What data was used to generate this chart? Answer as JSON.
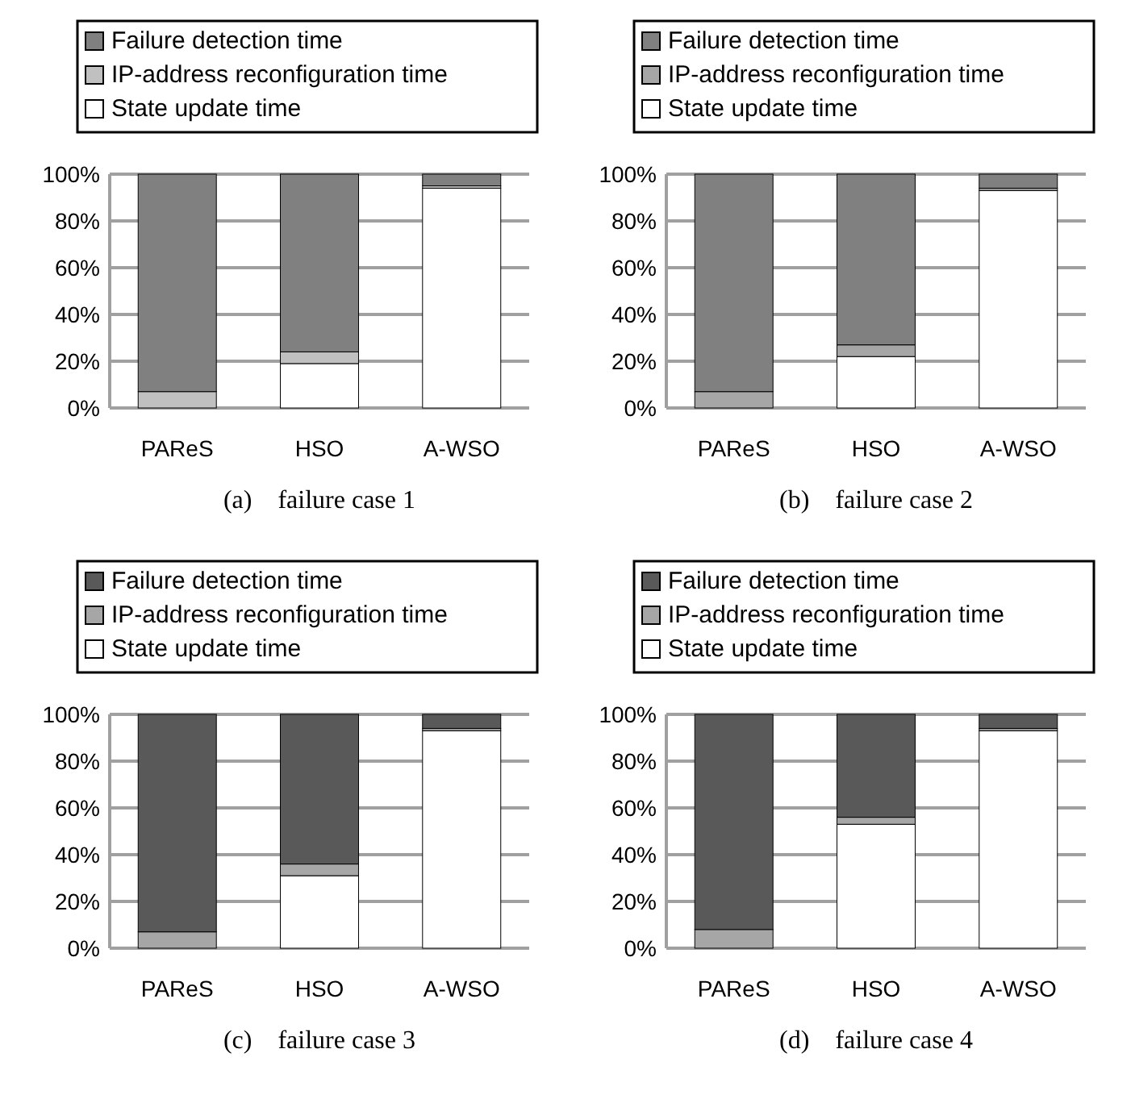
{
  "chart_data": [
    {
      "type": "bar",
      "stacked": true,
      "categories": [
        "PAReS",
        "HSO",
        "A-WSO"
      ],
      "ylim": [
        0,
        100
      ],
      "yticks": [
        {
          "value": 0,
          "label": "0%"
        },
        {
          "value": 20,
          "label": "20%"
        },
        {
          "value": 40,
          "label": "40%"
        },
        {
          "value": 60,
          "label": "60%"
        },
        {
          "value": 80,
          "label": "80%"
        },
        {
          "value": 100,
          "label": "100%"
        }
      ],
      "grid": "y",
      "legend": "top",
      "annotations": [
        "(a)    failure case 1"
      ],
      "series": [
        {
          "name": "State update time",
          "color": "#ffffff",
          "values": [
            0,
            19,
            94
          ]
        },
        {
          "name": "IP-address reconfiguration time",
          "color": "#c0c0c0",
          "values": [
            7,
            5,
            1
          ]
        },
        {
          "name": "Failure detection time",
          "color": "#808080",
          "values": [
            93,
            76,
            5
          ]
        }
      ]
    },
    {
      "type": "bar",
      "stacked": true,
      "categories": [
        "PAReS",
        "HSO",
        "A-WSO"
      ],
      "ylim": [
        0,
        100
      ],
      "yticks": [
        {
          "value": 0,
          "label": "0%"
        },
        {
          "value": 20,
          "label": "20%"
        },
        {
          "value": 40,
          "label": "40%"
        },
        {
          "value": 60,
          "label": "60%"
        },
        {
          "value": 80,
          "label": "80%"
        },
        {
          "value": 100,
          "label": "100%"
        }
      ],
      "grid": "y",
      "legend": "top",
      "annotations": [
        "(b)    failure case 2"
      ],
      "series": [
        {
          "name": "State update time",
          "color": "#ffffff",
          "values": [
            0,
            22,
            93
          ]
        },
        {
          "name": "IP-address reconfiguration time",
          "color": "#a6a6a6",
          "values": [
            7,
            5,
            1
          ]
        },
        {
          "name": "Failure detection time",
          "color": "#808080",
          "values": [
            93,
            73,
            6
          ]
        }
      ]
    },
    {
      "type": "bar",
      "stacked": true,
      "categories": [
        "PAReS",
        "HSO",
        "A-WSO"
      ],
      "ylim": [
        0,
        100
      ],
      "yticks": [
        {
          "value": 0,
          "label": "0%"
        },
        {
          "value": 20,
          "label": "20%"
        },
        {
          "value": 40,
          "label": "40%"
        },
        {
          "value": 60,
          "label": "60%"
        },
        {
          "value": 80,
          "label": "80%"
        },
        {
          "value": 100,
          "label": "100%"
        }
      ],
      "grid": "y",
      "legend": "top",
      "annotations": [
        "(c)    failure case 3"
      ],
      "series": [
        {
          "name": "State update time",
          "color": "#ffffff",
          "values": [
            0,
            31,
            93
          ]
        },
        {
          "name": "IP-address reconfiguration time",
          "color": "#a6a6a6",
          "values": [
            7,
            5,
            1
          ]
        },
        {
          "name": "Failure detection time",
          "color": "#595959",
          "values": [
            93,
            64,
            6
          ]
        }
      ]
    },
    {
      "type": "bar",
      "stacked": true,
      "categories": [
        "PAReS",
        "HSO",
        "A-WSO"
      ],
      "ylim": [
        0,
        100
      ],
      "yticks": [
        {
          "value": 0,
          "label": "0%"
        },
        {
          "value": 20,
          "label": "20%"
        },
        {
          "value": 40,
          "label": "40%"
        },
        {
          "value": 60,
          "label": "60%"
        },
        {
          "value": 80,
          "label": "80%"
        },
        {
          "value": 100,
          "label": "100%"
        }
      ],
      "grid": "y",
      "legend": "top",
      "annotations": [
        "(d)    failure case 4"
      ],
      "series": [
        {
          "name": "State update time",
          "color": "#ffffff",
          "values": [
            0,
            53,
            93
          ]
        },
        {
          "name": "IP-address reconfiguration time",
          "color": "#a6a6a6",
          "values": [
            8,
            3,
            1
          ]
        },
        {
          "name": "Failure detection time",
          "color": "#595959",
          "values": [
            92,
            44,
            6
          ]
        }
      ]
    }
  ]
}
